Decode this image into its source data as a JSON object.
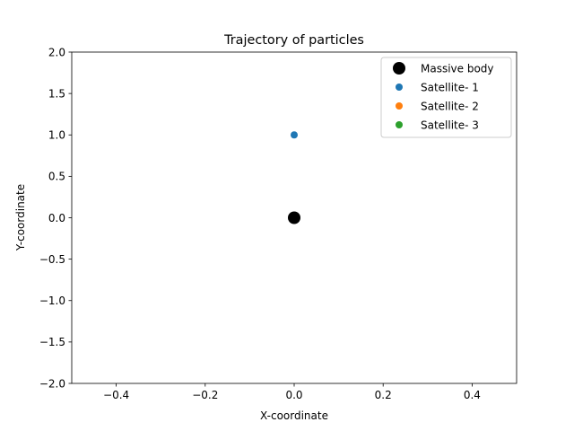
{
  "chart_data": {
    "type": "scatter",
    "title": "Trajectory of particles",
    "xlabel": "X-coordinate",
    "ylabel": "Y-coordinate",
    "xlim": [
      -0.5,
      0.5
    ],
    "ylim": [
      -2.0,
      2.0
    ],
    "xticks": [
      -0.4,
      -0.2,
      0.0,
      0.2,
      0.4
    ],
    "yticks": [
      -2.0,
      -1.5,
      -1.0,
      -0.5,
      0.0,
      0.5,
      1.0,
      1.5,
      2.0
    ],
    "xtick_labels": [
      "−0.4",
      "−0.2",
      "0.0",
      "0.2",
      "0.4"
    ],
    "ytick_labels": [
      "−2.0",
      "−1.5",
      "−1.0",
      "−0.5",
      "0.0",
      "0.5",
      "1.0",
      "1.5",
      "2.0"
    ],
    "grid": false,
    "legend_position": "top-right",
    "series": [
      {
        "name": "Massive body",
        "color": "#000000",
        "marker": "large-circle",
        "points": [
          [
            0.0,
            0.0
          ]
        ]
      },
      {
        "name": "Satellite- 1",
        "color": "#1f77b4",
        "marker": "circle",
        "points": [
          [
            0.0,
            1.0
          ]
        ]
      },
      {
        "name": "Satellite- 2",
        "color": "#ff7f0e",
        "marker": "circle",
        "points": []
      },
      {
        "name": "Satellite- 3",
        "color": "#2ca02c",
        "marker": "circle",
        "points": []
      }
    ]
  }
}
